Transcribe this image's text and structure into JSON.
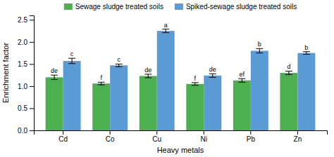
{
  "chart_data": {
    "type": "bar",
    "categories": [
      "Cd",
      "Co",
      "Cu",
      "Ni",
      "Pb",
      "Zn"
    ],
    "series": [
      {
        "name": "Sewage sludge treated soils",
        "color": "#4CAF50",
        "values": [
          1.2,
          1.06,
          1.23,
          1.05,
          1.13,
          1.3
        ],
        "errors": [
          0.05,
          0.03,
          0.04,
          0.03,
          0.04,
          0.04
        ],
        "annotations": [
          "de",
          "f",
          "de",
          "f",
          "ef",
          "d"
        ]
      },
      {
        "name": "Spiked-sewage sludge treated soils",
        "color": "#5B9BD5",
        "values": [
          1.57,
          1.47,
          2.25,
          1.24,
          1.8,
          1.75
        ],
        "errors": [
          0.06,
          0.03,
          0.04,
          0.04,
          0.05,
          0.03
        ],
        "annotations": [
          "c",
          "c",
          "a",
          "de",
          "b",
          "b"
        ]
      }
    ],
    "xlabel": "Heavy metals",
    "ylabel": "Enrichment factor",
    "ylim": [
      0,
      2.6
    ],
    "yticks": [
      {
        "value": 0,
        "label": "0.0"
      },
      0.5,
      {
        "value": 1,
        "label": "1.0"
      },
      1.5,
      {
        "value": 2,
        "label": "2.0"
      },
      2.5
    ],
    "grid": false,
    "legend": "top"
  }
}
